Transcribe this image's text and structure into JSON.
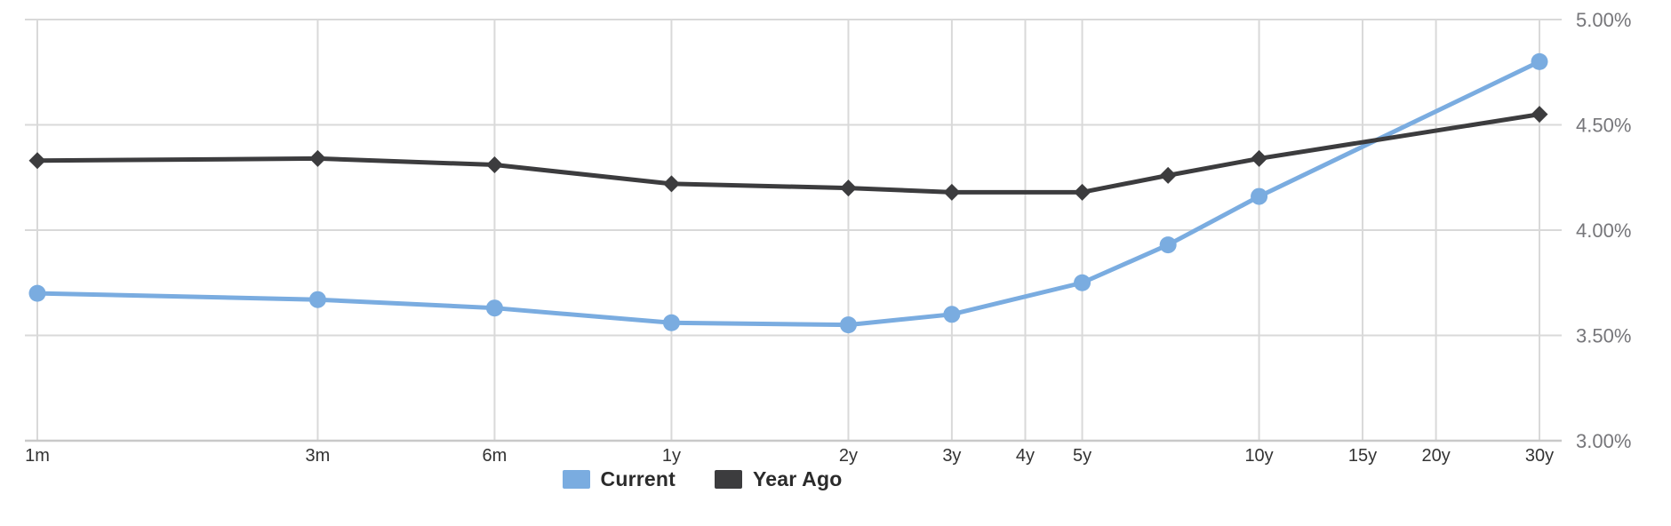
{
  "chart_data": {
    "type": "line",
    "title": "",
    "grid": true,
    "legend_position": "bottom-center",
    "x_axis": {
      "scale": "log-maturity",
      "tick_labels": [
        "1m",
        "3m",
        "6m",
        "1y",
        "2y",
        "3y",
        "4y",
        "5y",
        "10y",
        "15y",
        "20y",
        "30y"
      ],
      "tick_months": [
        1,
        3,
        6,
        12,
        24,
        36,
        48,
        60,
        120,
        180,
        240,
        360
      ]
    },
    "y_axis": {
      "position": "right",
      "min": 3.0,
      "max": 5.0,
      "step": 0.5,
      "tick_values": [
        5.0,
        4.5,
        4.0,
        3.5,
        3.0
      ],
      "tick_labels": [
        "5.00%",
        "4.50%",
        "4.00%",
        "3.50%",
        "3.00%"
      ]
    },
    "categories": [
      "1m",
      "3m",
      "6m",
      "1y",
      "2y",
      "3y",
      "5y",
      "7y",
      "10y",
      "30y"
    ],
    "months": [
      1,
      3,
      6,
      12,
      24,
      36,
      60,
      84,
      120,
      360
    ],
    "series": [
      {
        "name": "Current",
        "color": "#7AACE0",
        "marker": "circle",
        "values": [
          3.7,
          3.67,
          3.63,
          3.56,
          3.55,
          3.6,
          3.75,
          3.93,
          4.16,
          4.8
        ]
      },
      {
        "name": "Year Ago",
        "color": "#3C3C3E",
        "marker": "diamond",
        "values": [
          4.33,
          4.34,
          4.31,
          4.22,
          4.2,
          4.18,
          4.18,
          4.26,
          4.34,
          4.55
        ]
      }
    ],
    "colors": {
      "background": "#FFFFFF",
      "grid": "#D9D9D9",
      "axis": "#C9C9C9",
      "y_label": "#76767A",
      "x_label": "#333333",
      "legend_text": "#2B2B2B"
    }
  },
  "legend": {
    "items": [
      {
        "label": "Current"
      },
      {
        "label": "Year Ago"
      }
    ]
  }
}
